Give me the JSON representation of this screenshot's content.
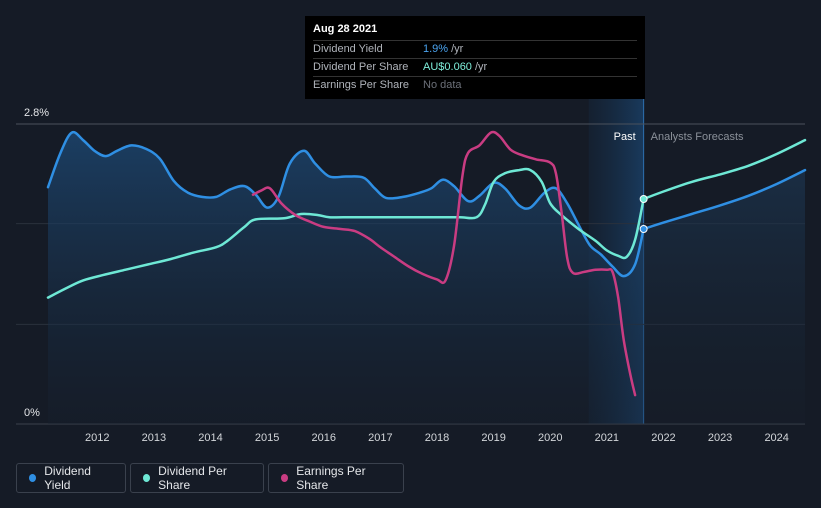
{
  "chart_data": {
    "type": "line",
    "title": "",
    "xlabel": "",
    "ylabel": "",
    "y_axis_labels": [
      "2.8%",
      "0%"
    ],
    "x_ticks": [
      "2012",
      "2013",
      "2014",
      "2015",
      "2016",
      "2017",
      "2018",
      "2019",
      "2020",
      "2021",
      "2022",
      "2023",
      "2024"
    ],
    "xlim": [
      2011.13,
      2024.5
    ],
    "ylim": [
      0,
      2.8
    ],
    "region_labels": {
      "past": "Past",
      "forecast": "Analysts Forecasts"
    },
    "series": [
      {
        "name": "Dividend Yield",
        "color": "#2f8fe3",
        "points": [
          [
            2011.13,
            2.21
          ],
          [
            2011.35,
            2.53
          ],
          [
            2011.55,
            2.72
          ],
          [
            2011.75,
            2.65
          ],
          [
            2011.95,
            2.55
          ],
          [
            2012.15,
            2.5
          ],
          [
            2012.35,
            2.55
          ],
          [
            2012.6,
            2.6
          ],
          [
            2012.85,
            2.57
          ],
          [
            2013.1,
            2.48
          ],
          [
            2013.35,
            2.27
          ],
          [
            2013.6,
            2.16
          ],
          [
            2013.85,
            2.12
          ],
          [
            2014.1,
            2.12
          ],
          [
            2014.35,
            2.19
          ],
          [
            2014.6,
            2.22
          ],
          [
            2014.8,
            2.14
          ],
          [
            2015.0,
            2.02
          ],
          [
            2015.2,
            2.12
          ],
          [
            2015.4,
            2.43
          ],
          [
            2015.65,
            2.55
          ],
          [
            2015.85,
            2.43
          ],
          [
            2016.1,
            2.31
          ],
          [
            2016.4,
            2.31
          ],
          [
            2016.7,
            2.3
          ],
          [
            2016.9,
            2.2
          ],
          [
            2017.1,
            2.11
          ],
          [
            2017.4,
            2.12
          ],
          [
            2017.7,
            2.16
          ],
          [
            2017.9,
            2.2
          ],
          [
            2018.1,
            2.28
          ],
          [
            2018.3,
            2.22
          ],
          [
            2018.55,
            2.08
          ],
          [
            2018.75,
            2.13
          ],
          [
            2019.0,
            2.25
          ],
          [
            2019.2,
            2.2
          ],
          [
            2019.45,
            2.04
          ],
          [
            2019.65,
            2.02
          ],
          [
            2019.9,
            2.16
          ],
          [
            2020.1,
            2.2
          ],
          [
            2020.3,
            2.06
          ],
          [
            2020.5,
            1.86
          ],
          [
            2020.7,
            1.67
          ],
          [
            2020.9,
            1.58
          ],
          [
            2021.1,
            1.47
          ],
          [
            2021.3,
            1.38
          ],
          [
            2021.5,
            1.49
          ],
          [
            2021.65,
            1.82
          ]
        ],
        "forecast": [
          [
            2021.65,
            1.82
          ],
          [
            2022.0,
            1.88
          ],
          [
            2022.5,
            1.96
          ],
          [
            2023.0,
            2.04
          ],
          [
            2023.5,
            2.13
          ],
          [
            2024.0,
            2.24
          ],
          [
            2024.5,
            2.37
          ]
        ]
      },
      {
        "name": "Dividend Per Share",
        "color": "#6ee8d5",
        "points": [
          [
            2011.13,
            1.18
          ],
          [
            2011.5,
            1.28
          ],
          [
            2011.75,
            1.34
          ],
          [
            2012.1,
            1.39
          ],
          [
            2012.5,
            1.44
          ],
          [
            2012.9,
            1.49
          ],
          [
            2013.3,
            1.54
          ],
          [
            2013.7,
            1.6
          ],
          [
            2014.1,
            1.65
          ],
          [
            2014.3,
            1.71
          ],
          [
            2014.6,
            1.84
          ],
          [
            2014.8,
            1.91
          ],
          [
            2015.3,
            1.92
          ],
          [
            2015.6,
            1.96
          ],
          [
            2015.9,
            1.95
          ],
          [
            2016.1,
            1.93
          ],
          [
            2016.5,
            1.93
          ],
          [
            2017.0,
            1.93
          ],
          [
            2017.5,
            1.93
          ],
          [
            2018.0,
            1.93
          ],
          [
            2018.4,
            1.93
          ],
          [
            2018.7,
            1.93
          ],
          [
            2018.85,
            2.05
          ],
          [
            2019.0,
            2.26
          ],
          [
            2019.2,
            2.34
          ],
          [
            2019.45,
            2.37
          ],
          [
            2019.65,
            2.37
          ],
          [
            2019.85,
            2.26
          ],
          [
            2020.0,
            2.06
          ],
          [
            2020.2,
            1.95
          ],
          [
            2020.5,
            1.82
          ],
          [
            2020.8,
            1.71
          ],
          [
            2021.0,
            1.62
          ],
          [
            2021.2,
            1.57
          ],
          [
            2021.35,
            1.56
          ],
          [
            2021.5,
            1.72
          ],
          [
            2021.65,
            2.1
          ]
        ],
        "forecast": [
          [
            2021.65,
            2.1
          ],
          [
            2022.0,
            2.17
          ],
          [
            2022.5,
            2.26
          ],
          [
            2023.0,
            2.33
          ],
          [
            2023.5,
            2.41
          ],
          [
            2024.0,
            2.52
          ],
          [
            2024.5,
            2.65
          ]
        ]
      },
      {
        "name": "Earnings Per Share",
        "color": "#c93c82",
        "points": [
          [
            2014.75,
            2.14
          ],
          [
            2014.9,
            2.18
          ],
          [
            2015.05,
            2.2
          ],
          [
            2015.25,
            2.06
          ],
          [
            2015.5,
            1.95
          ],
          [
            2015.75,
            1.89
          ],
          [
            2016.0,
            1.84
          ],
          [
            2016.3,
            1.82
          ],
          [
            2016.55,
            1.8
          ],
          [
            2016.8,
            1.73
          ],
          [
            2017.0,
            1.65
          ],
          [
            2017.25,
            1.56
          ],
          [
            2017.5,
            1.47
          ],
          [
            2017.75,
            1.4
          ],
          [
            2018.0,
            1.35
          ],
          [
            2018.15,
            1.34
          ],
          [
            2018.3,
            1.66
          ],
          [
            2018.45,
            2.32
          ],
          [
            2018.55,
            2.53
          ],
          [
            2018.75,
            2.6
          ],
          [
            2018.95,
            2.72
          ],
          [
            2019.1,
            2.69
          ],
          [
            2019.3,
            2.56
          ],
          [
            2019.5,
            2.51
          ],
          [
            2019.75,
            2.47
          ],
          [
            2020.0,
            2.44
          ],
          [
            2020.1,
            2.34
          ],
          [
            2020.2,
            1.98
          ],
          [
            2020.3,
            1.55
          ],
          [
            2020.4,
            1.41
          ],
          [
            2020.6,
            1.42
          ],
          [
            2020.8,
            1.44
          ],
          [
            2021.0,
            1.44
          ],
          [
            2021.1,
            1.42
          ],
          [
            2021.2,
            1.18
          ],
          [
            2021.3,
            0.78
          ],
          [
            2021.42,
            0.45
          ],
          [
            2021.5,
            0.27
          ]
        ]
      }
    ]
  },
  "tooltip": {
    "date": "Aug 28 2021",
    "rows": [
      {
        "label": "Dividend Yield",
        "value": "1.9%",
        "unit": "/yr"
      },
      {
        "label": "Dividend Per Share",
        "value": "AU$0.060",
        "unit": "/yr"
      },
      {
        "label": "Earnings Per Share",
        "value": "No data"
      }
    ]
  },
  "legend": [
    {
      "label": "Dividend Yield",
      "color": "#2f8fe3"
    },
    {
      "label": "Dividend Per Share",
      "color": "#6ee8d5"
    },
    {
      "label": "Earnings Per Share",
      "color": "#c93c82"
    }
  ]
}
